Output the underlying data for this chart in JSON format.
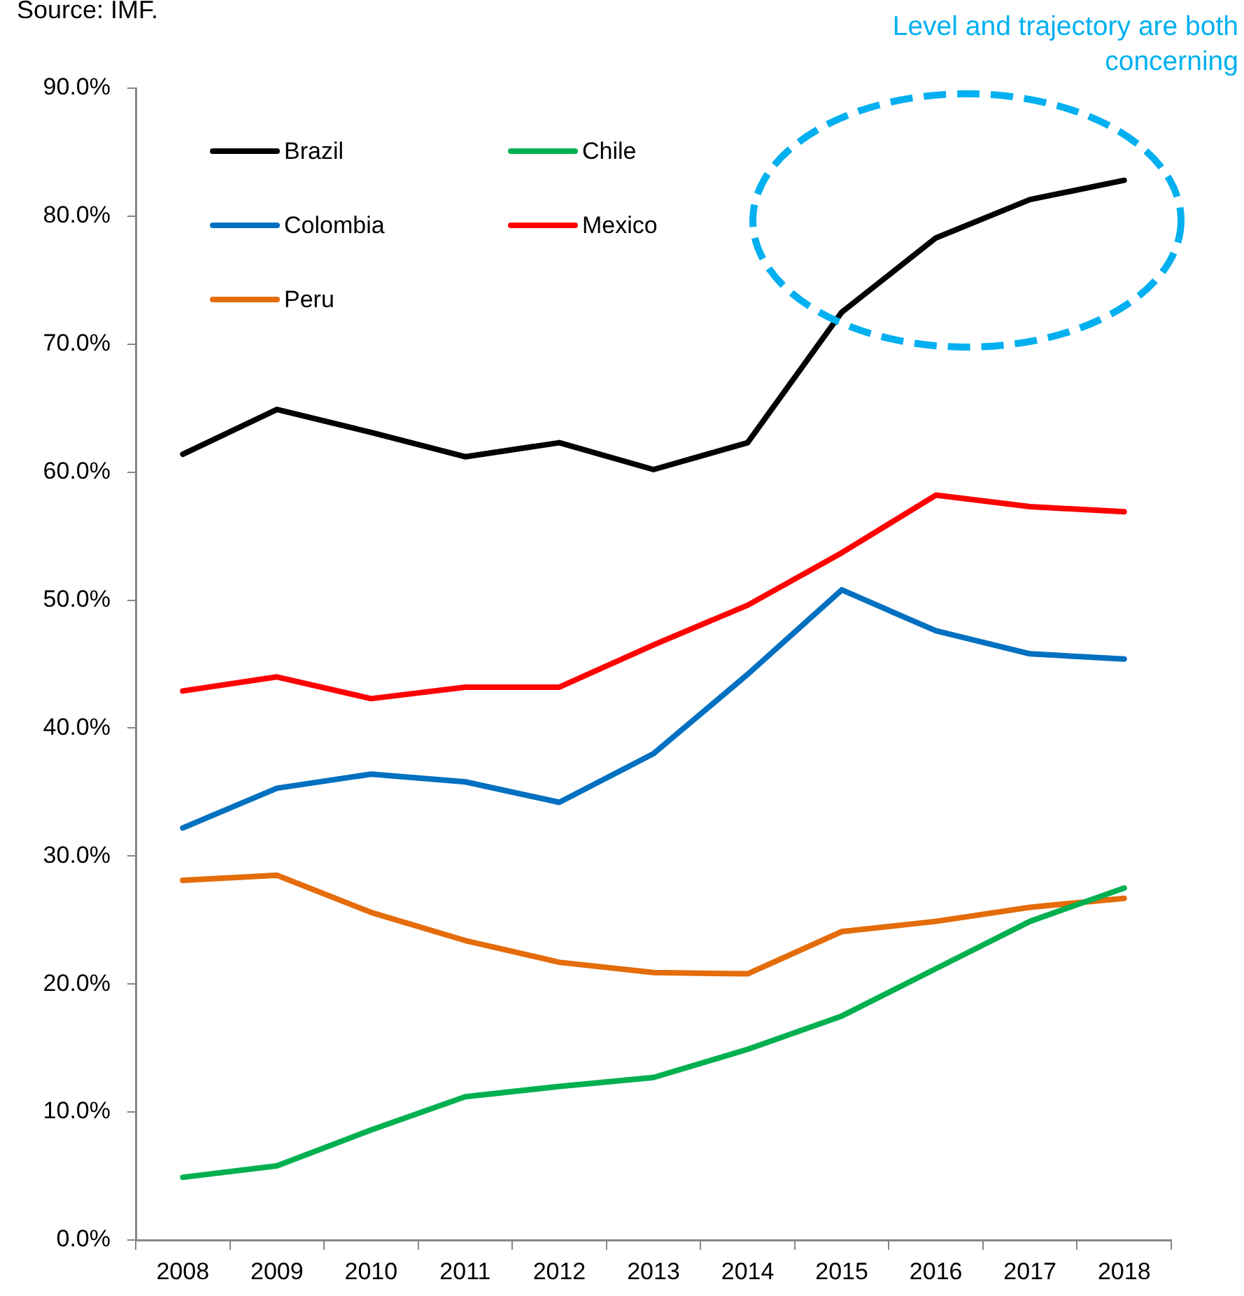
{
  "chart_data": {
    "type": "line",
    "annotations": [
      "Source: IMF.",
      "Level and trajectory are both concerning"
    ],
    "categories": [
      "2008",
      "2009",
      "2010",
      "2011",
      "2012",
      "2013",
      "2014",
      "2015",
      "2016",
      "2017",
      "2018"
    ],
    "series": [
      {
        "name": "Brazil",
        "color": "#000000",
        "values": [
          61.4,
          64.9,
          63.1,
          61.2,
          62.3,
          60.2,
          62.3,
          72.5,
          78.3,
          81.3,
          82.8
        ]
      },
      {
        "name": "Chile",
        "color": "#00b050",
        "values": [
          4.9,
          5.8,
          8.6,
          11.2,
          12.0,
          12.7,
          14.9,
          17.5,
          21.2,
          24.9,
          27.5
        ]
      },
      {
        "name": "Colombia",
        "color": "#0070c0",
        "values": [
          32.2,
          35.3,
          36.4,
          35.8,
          34.2,
          38.0,
          44.2,
          50.8,
          47.6,
          45.8,
          45.4
        ]
      },
      {
        "name": "Mexico",
        "color": "#ff0000",
        "values": [
          42.9,
          44.0,
          42.3,
          43.2,
          43.2,
          46.5,
          49.6,
          53.7,
          58.2,
          57.3,
          56.9
        ]
      },
      {
        "name": "Peru",
        "color": "#e46c0a",
        "values": [
          28.1,
          28.5,
          25.6,
          23.4,
          21.7,
          20.9,
          20.8,
          24.1,
          24.9,
          26.0,
          26.7
        ]
      }
    ],
    "ylim": [
      0,
      90
    ],
    "yticks": [
      {
        "value": 0,
        "label": "0.0%"
      },
      {
        "value": 10,
        "label": "10.0%"
      },
      {
        "value": 20,
        "label": "20.0%"
      },
      {
        "value": 30,
        "label": "30.0%"
      },
      {
        "value": 40,
        "label": "40.0%"
      },
      {
        "value": 50,
        "label": "50.0%"
      },
      {
        "value": 60,
        "label": "60.0%"
      },
      {
        "value": 70,
        "label": "70.0%"
      },
      {
        "value": 80,
        "label": "80.0%"
      },
      {
        "value": 90,
        "label": "90.0%"
      }
    ],
    "legend": "top left"
  }
}
